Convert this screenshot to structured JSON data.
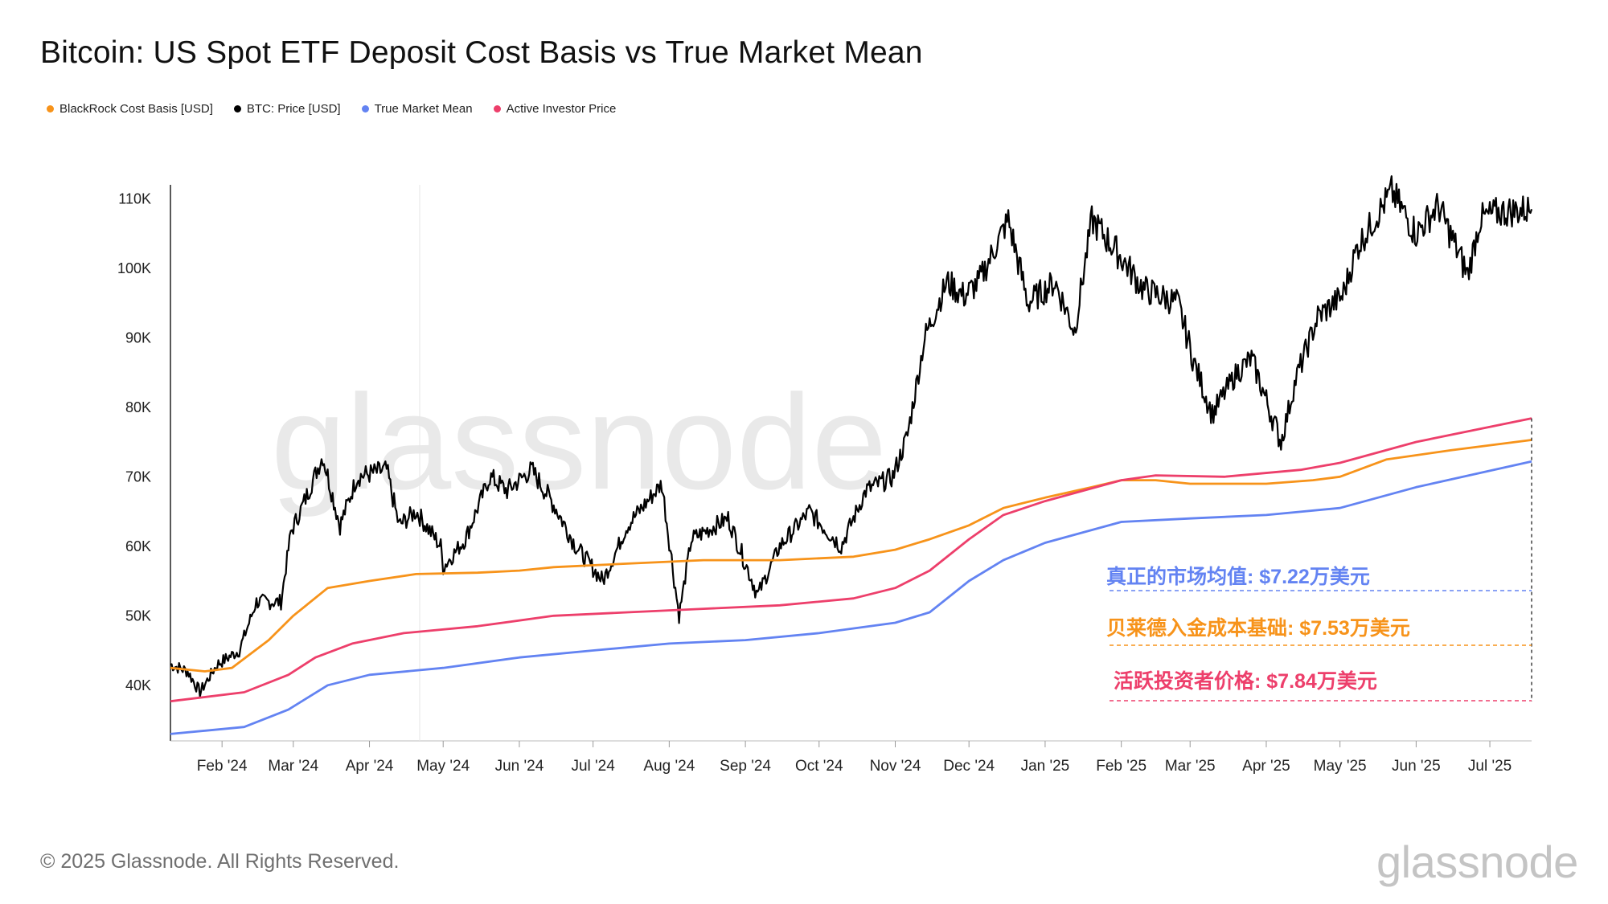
{
  "title": "Bitcoin: US Spot ETF Deposit Cost Basis  vs True Market Mean",
  "legend": [
    {
      "label": "BlackRock Cost Basis [USD]",
      "color": "#f7931a"
    },
    {
      "label": "BTC: Price [USD]",
      "color": "#000000"
    },
    {
      "label": "True Market Mean",
      "color": "#6383f2"
    },
    {
      "label": "Active Investor Price",
      "color": "#ed3f6b"
    }
  ],
  "annotations": [
    {
      "text": "真正的市场均值: $7.22万美元",
      "color": "#6383f2"
    },
    {
      "text": "贝莱德入金成本基础: $7.53万美元",
      "color": "#f7931a"
    },
    {
      "text": "活跃投资者价格: $7.84万美元",
      "color": "#ed3f6b"
    }
  ],
  "watermark": "glassnode",
  "footer": "© 2025 Glassnode. All Rights Reserved.",
  "logo": "glassnode",
  "chart_data": {
    "type": "line",
    "title": "Bitcoin: US Spot ETF Deposit Cost Basis  vs True Market Mean",
    "xlabel": "",
    "ylabel": "",
    "x_range": [
      "2024-01-11",
      "2025-07-18"
    ],
    "ylim": [
      32000,
      112000
    ],
    "y_ticks": [
      40000,
      50000,
      60000,
      70000,
      80000,
      90000,
      100000,
      110000
    ],
    "y_tick_labels": [
      "40K",
      "50K",
      "60K",
      "70K",
      "80K",
      "90K",
      "100K",
      "110K"
    ],
    "x_ticks": [
      "2024-02-01",
      "2024-03-01",
      "2024-04-01",
      "2024-05-01",
      "2024-06-01",
      "2024-07-01",
      "2024-08-01",
      "2024-09-01",
      "2024-10-01",
      "2024-11-01",
      "2024-12-01",
      "2025-01-01",
      "2025-02-01",
      "2025-03-01",
      "2025-04-01",
      "2025-05-01",
      "2025-06-01",
      "2025-07-01"
    ],
    "x_tick_labels": [
      "Feb '24",
      "Mar '24",
      "Apr '24",
      "May '24",
      "Jun '24",
      "Jul '24",
      "Aug '24",
      "Sep '24",
      "Oct '24",
      "Nov '24",
      "Dec '24",
      "Jan '25",
      "Feb '25",
      "Mar '25",
      "Apr '25",
      "May '25",
      "Jun '25",
      "Jul '25"
    ],
    "series": [
      {
        "name": "BTC: Price [USD]",
        "color": "#000000",
        "points": [
          [
            "2024-01-11",
            43000
          ],
          [
            "2024-01-18",
            42000
          ],
          [
            "2024-01-23",
            39000
          ],
          [
            "2024-01-30",
            43000
          ],
          [
            "2024-02-08",
            45000
          ],
          [
            "2024-02-15",
            52000
          ],
          [
            "2024-02-25",
            52000
          ],
          [
            "2024-02-29",
            62000
          ],
          [
            "2024-03-05",
            66000
          ],
          [
            "2024-03-13",
            73000
          ],
          [
            "2024-03-20",
            63000
          ],
          [
            "2024-03-27",
            70000
          ],
          [
            "2024-04-08",
            71000
          ],
          [
            "2024-04-13",
            63000
          ],
          [
            "2024-04-20",
            65000
          ],
          [
            "2024-04-30",
            60000
          ],
          [
            "2024-05-01",
            57000
          ],
          [
            "2024-05-10",
            61000
          ],
          [
            "2024-05-20",
            70000
          ],
          [
            "2024-05-27",
            68000
          ],
          [
            "2024-06-06",
            71000
          ],
          [
            "2024-06-15",
            66000
          ],
          [
            "2024-06-24",
            60000
          ],
          [
            "2024-07-05",
            55000
          ],
          [
            "2024-07-15",
            63000
          ],
          [
            "2024-07-29",
            69000
          ],
          [
            "2024-08-05",
            50000
          ],
          [
            "2024-08-10",
            61000
          ],
          [
            "2024-08-25",
            64000
          ],
          [
            "2024-09-06",
            53000
          ],
          [
            "2024-09-15",
            60000
          ],
          [
            "2024-09-27",
            65000
          ],
          [
            "2024-10-10",
            60000
          ],
          [
            "2024-10-20",
            68000
          ],
          [
            "2024-10-31",
            70000
          ],
          [
            "2024-11-06",
            76000
          ],
          [
            "2024-11-13",
            90000
          ],
          [
            "2024-11-22",
            98000
          ],
          [
            "2024-11-29",
            96000
          ],
          [
            "2024-12-05",
            98000
          ],
          [
            "2024-12-17",
            107000
          ],
          [
            "2024-12-25",
            95000
          ],
          [
            "2025-01-05",
            98000
          ],
          [
            "2025-01-13",
            91000
          ],
          [
            "2025-01-20",
            107000
          ],
          [
            "2025-01-31",
            102000
          ],
          [
            "2025-02-10",
            97000
          ],
          [
            "2025-02-24",
            95000
          ],
          [
            "2025-03-03",
            86000
          ],
          [
            "2025-03-10",
            79000
          ],
          [
            "2025-03-20",
            85000
          ],
          [
            "2025-03-26",
            87000
          ],
          [
            "2025-04-07",
            75000
          ],
          [
            "2025-04-13",
            84000
          ],
          [
            "2025-04-22",
            93000
          ],
          [
            "2025-05-02",
            96000
          ],
          [
            "2025-05-08",
            103000
          ],
          [
            "2025-05-22",
            111000
          ],
          [
            "2025-06-01",
            105000
          ],
          [
            "2025-06-10",
            109000
          ],
          [
            "2025-06-22",
            99000
          ],
          [
            "2025-06-27",
            107000
          ],
          [
            "2025-07-04",
            108000
          ],
          [
            "2025-07-18",
            108500
          ]
        ]
      },
      {
        "name": "BlackRock Cost Basis [USD]",
        "color": "#f7931a",
        "points": [
          [
            "2024-01-11",
            42500
          ],
          [
            "2024-01-25",
            42000
          ],
          [
            "2024-02-05",
            42500
          ],
          [
            "2024-02-20",
            46500
          ],
          [
            "2024-03-01",
            50000
          ],
          [
            "2024-03-15",
            54000
          ],
          [
            "2024-04-01",
            55000
          ],
          [
            "2024-04-20",
            56000
          ],
          [
            "2024-05-15",
            56200
          ],
          [
            "2024-06-01",
            56500
          ],
          [
            "2024-06-15",
            57000
          ],
          [
            "2024-07-15",
            57500
          ],
          [
            "2024-08-15",
            58000
          ],
          [
            "2024-09-15",
            58000
          ],
          [
            "2024-10-15",
            58500
          ],
          [
            "2024-11-01",
            59500
          ],
          [
            "2024-11-15",
            61000
          ],
          [
            "2024-12-01",
            63000
          ],
          [
            "2024-12-15",
            65500
          ],
          [
            "2025-01-01",
            67000
          ],
          [
            "2025-01-20",
            68500
          ],
          [
            "2025-02-01",
            69500
          ],
          [
            "2025-02-15",
            69500
          ],
          [
            "2025-03-01",
            69000
          ],
          [
            "2025-04-01",
            69000
          ],
          [
            "2025-04-20",
            69500
          ],
          [
            "2025-05-01",
            70000
          ],
          [
            "2025-05-20",
            72500
          ],
          [
            "2025-06-15",
            73800
          ],
          [
            "2025-07-18",
            75300
          ]
        ]
      },
      {
        "name": "Active Investor Price",
        "color": "#ed3f6b",
        "points": [
          [
            "2024-01-11",
            37700
          ],
          [
            "2024-02-10",
            39000
          ],
          [
            "2024-02-28",
            41500
          ],
          [
            "2024-03-10",
            44000
          ],
          [
            "2024-03-25",
            46000
          ],
          [
            "2024-04-15",
            47500
          ],
          [
            "2024-05-15",
            48500
          ],
          [
            "2024-06-15",
            50000
          ],
          [
            "2024-07-15",
            50500
          ],
          [
            "2024-08-15",
            51000
          ],
          [
            "2024-09-15",
            51500
          ],
          [
            "2024-10-15",
            52500
          ],
          [
            "2024-11-01",
            54000
          ],
          [
            "2024-11-15",
            56500
          ],
          [
            "2024-12-01",
            61000
          ],
          [
            "2024-12-15",
            64500
          ],
          [
            "2025-01-01",
            66500
          ],
          [
            "2025-02-01",
            69500
          ],
          [
            "2025-02-15",
            70200
          ],
          [
            "2025-03-15",
            70000
          ],
          [
            "2025-04-15",
            71000
          ],
          [
            "2025-05-01",
            72000
          ],
          [
            "2025-06-01",
            75000
          ],
          [
            "2025-07-18",
            78400
          ]
        ]
      },
      {
        "name": "True Market Mean",
        "color": "#6383f2",
        "points": [
          [
            "2024-01-11",
            33000
          ],
          [
            "2024-02-10",
            34000
          ],
          [
            "2024-02-28",
            36500
          ],
          [
            "2024-03-15",
            40000
          ],
          [
            "2024-04-01",
            41500
          ],
          [
            "2024-05-01",
            42500
          ],
          [
            "2024-06-01",
            44000
          ],
          [
            "2024-07-01",
            45000
          ],
          [
            "2024-08-01",
            46000
          ],
          [
            "2024-09-01",
            46500
          ],
          [
            "2024-10-01",
            47500
          ],
          [
            "2024-11-01",
            49000
          ],
          [
            "2024-11-15",
            50500
          ],
          [
            "2024-12-01",
            55000
          ],
          [
            "2024-12-15",
            58000
          ],
          [
            "2025-01-01",
            60500
          ],
          [
            "2025-02-01",
            63500
          ],
          [
            "2025-03-01",
            64000
          ],
          [
            "2025-04-01",
            64500
          ],
          [
            "2025-05-01",
            65500
          ],
          [
            "2025-06-01",
            68500
          ],
          [
            "2025-07-18",
            72200
          ]
        ]
      }
    ],
    "annotation_values": [
      {
        "name": "True Market Mean",
        "value": 72200
      },
      {
        "name": "BlackRock Cost Basis",
        "value": 75300
      },
      {
        "name": "Active Investor Price",
        "value": 78400
      }
    ]
  }
}
